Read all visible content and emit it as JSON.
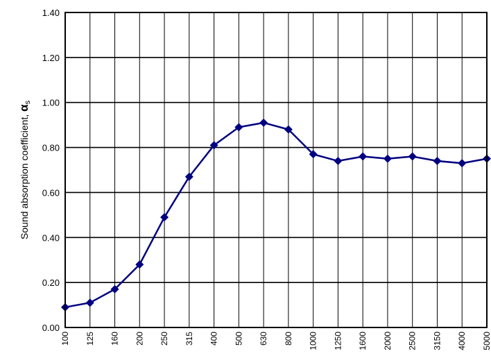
{
  "chart_data": {
    "type": "line",
    "title": "",
    "xlabel": "",
    "ylabel": "Sound absorption coefficient, ",
    "ylabel_symbol": "α",
    "ylabel_subscript": "s",
    "categories": [
      "100",
      "125",
      "160",
      "200",
      "250",
      "315",
      "400",
      "500",
      "630",
      "800",
      "1000",
      "1250",
      "1600",
      "2000",
      "2500",
      "3150",
      "4000",
      "5000"
    ],
    "series": [
      {
        "values": [
          0.09,
          0.11,
          0.17,
          0.28,
          0.49,
          0.67,
          0.81,
          0.89,
          0.91,
          0.88,
          0.77,
          0.74,
          0.76,
          0.75,
          0.76,
          0.74,
          0.73,
          0.75
        ],
        "color": "#000080",
        "marker": "diamond"
      }
    ],
    "ylim": [
      0,
      1.4
    ],
    "yticks": [
      "0.00",
      "0.20",
      "0.40",
      "0.60",
      "0.80",
      "1.00",
      "1.20",
      "1.40"
    ],
    "grid": true,
    "legend": "none"
  }
}
